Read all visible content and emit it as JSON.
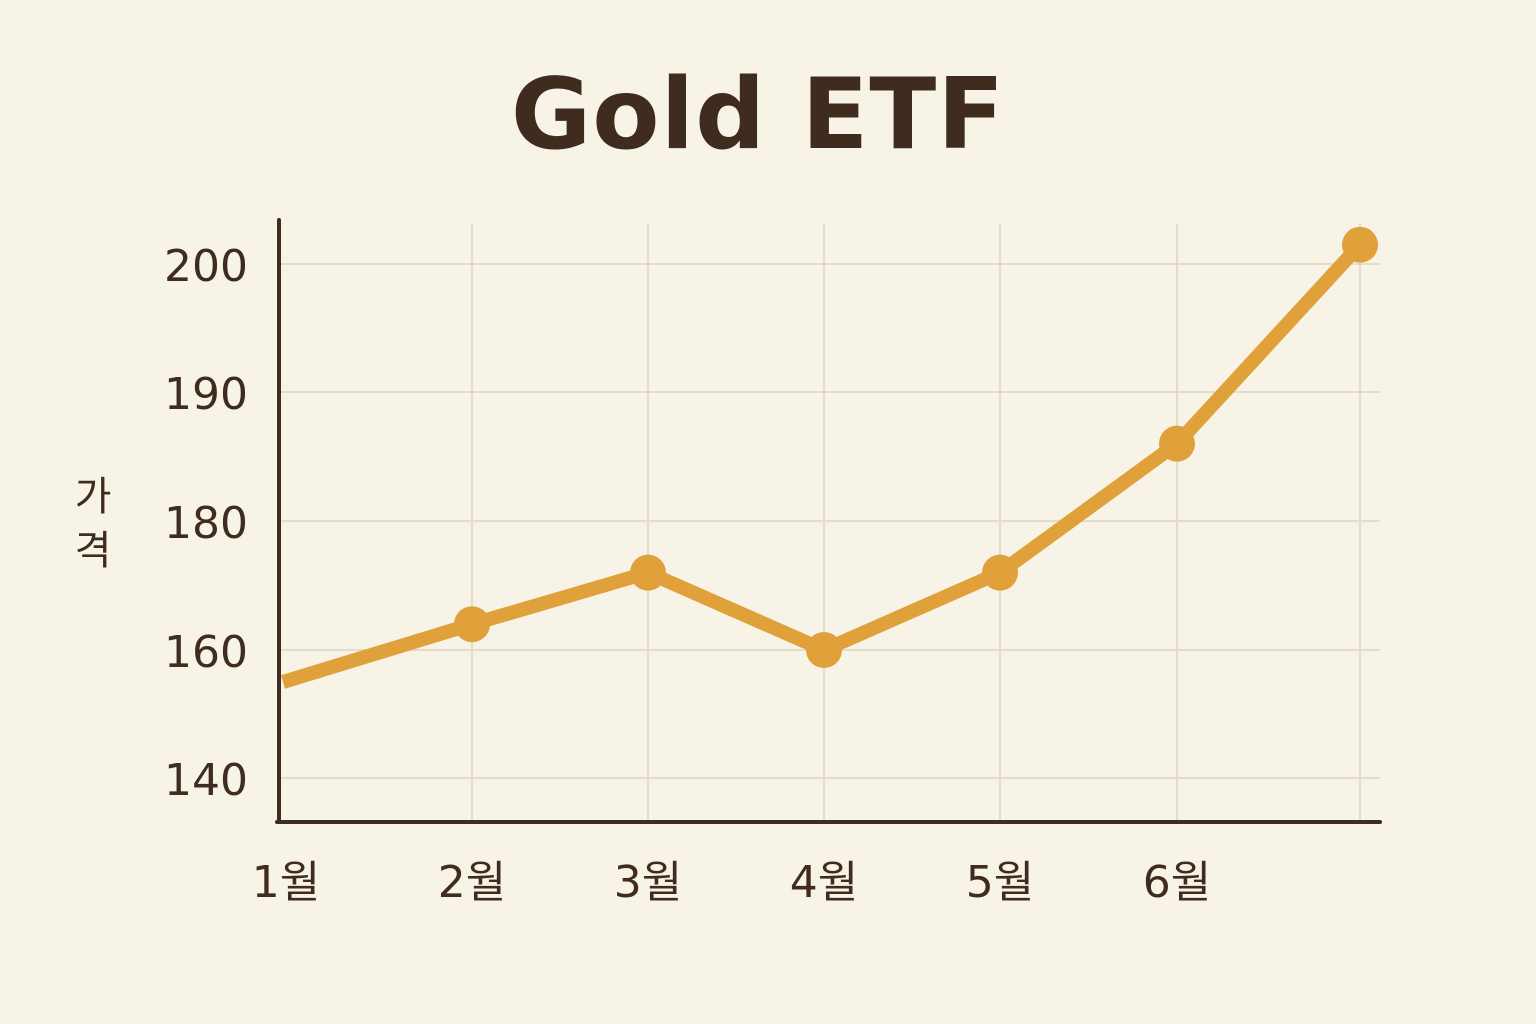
{
  "chart_data": {
    "type": "line",
    "title": "Gold ETF",
    "xlabel": "",
    "ylabel": "가격",
    "categories": [
      "1월",
      "2월",
      "3월",
      "4월",
      "5월",
      "6월"
    ],
    "y_ticks": [
      "200",
      "190",
      "180",
      "160",
      "140"
    ],
    "series": [
      {
        "points": [
          {
            "x": "1월",
            "y": 155
          },
          {
            "x": "2월",
            "y": 164
          },
          {
            "x": "3월",
            "y": 172
          },
          {
            "x": "4월",
            "y": 160
          },
          {
            "x": "5월",
            "y": 172
          },
          {
            "x": "6월",
            "y": 186
          },
          {
            "x": "",
            "y": 201.5
          }
        ]
      }
    ],
    "grid": true,
    "colors": {
      "background": "#f8f3e7",
      "line": "#e0a13a",
      "axis": "#3f2c1f",
      "grid": "#e4dccb",
      "text": "#3f2c1f"
    }
  }
}
